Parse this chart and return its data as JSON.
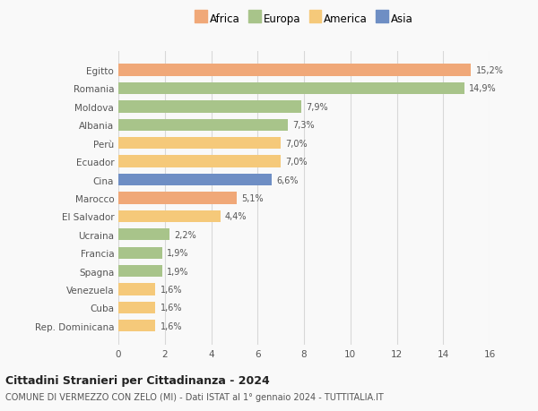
{
  "categories": [
    "Rep. Dominicana",
    "Cuba",
    "Venezuela",
    "Spagna",
    "Francia",
    "Ucraina",
    "El Salvador",
    "Marocco",
    "Cina",
    "Ecuador",
    "Perù",
    "Albania",
    "Moldova",
    "Romania",
    "Egitto"
  ],
  "values": [
    1.6,
    1.6,
    1.6,
    1.9,
    1.9,
    2.2,
    4.4,
    5.1,
    6.6,
    7.0,
    7.0,
    7.3,
    7.9,
    14.9,
    15.2
  ],
  "labels": [
    "1,6%",
    "1,6%",
    "1,6%",
    "1,9%",
    "1,9%",
    "2,2%",
    "4,4%",
    "5,1%",
    "6,6%",
    "7,0%",
    "7,0%",
    "7,3%",
    "7,9%",
    "14,9%",
    "15,2%"
  ],
  "colors": [
    "#f5c97a",
    "#f5c97a",
    "#f5c97a",
    "#a8c48a",
    "#a8c48a",
    "#a8c48a",
    "#f5c97a",
    "#f0a878",
    "#6e8ec4",
    "#f5c97a",
    "#f5c97a",
    "#a8c48a",
    "#a8c48a",
    "#a8c48a",
    "#f0a878"
  ],
  "legend": [
    {
      "label": "Africa",
      "color": "#f0a878"
    },
    {
      "label": "Europa",
      "color": "#a8c48a"
    },
    {
      "label": "America",
      "color": "#f5c97a"
    },
    {
      "label": "Asia",
      "color": "#6e8ec4"
    }
  ],
  "xlim": [
    0,
    16
  ],
  "xticks": [
    0,
    2,
    4,
    6,
    8,
    10,
    12,
    14,
    16
  ],
  "title": "Cittadini Stranieri per Cittadinanza - 2024",
  "subtitle": "COMUNE DI VERMEZZO CON ZELO (MI) - Dati ISTAT al 1° gennaio 2024 - TUTTITALIA.IT",
  "background_color": "#f9f9f9",
  "grid_color": "#d8d8d8",
  "bar_height": 0.65
}
